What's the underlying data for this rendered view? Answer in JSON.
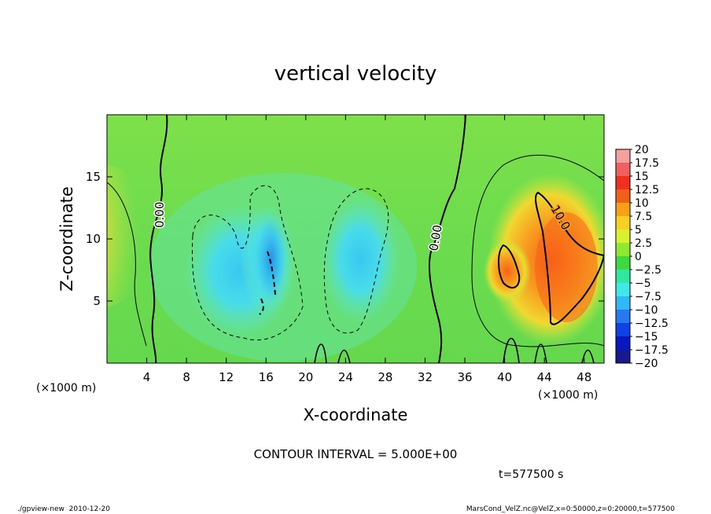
{
  "chart_data": {
    "type": "heatmap",
    "title": "vertical velocity",
    "xlabel": "X-coordinate",
    "ylabel": "Z-coordinate",
    "x_unit": "(×1000 m)",
    "z_unit": "(×1000 m)",
    "xlim": [
      0,
      50
    ],
    "zlim": [
      0,
      20
    ],
    "x_ticks": [
      4,
      8,
      12,
      16,
      20,
      24,
      28,
      32,
      36,
      40,
      44,
      48
    ],
    "z_ticks": [
      5,
      10,
      15
    ],
    "contour_labels": [
      "0.00",
      "0.00",
      "10.0"
    ],
    "contour_interval": "CONTOUR INTERVAL = 5.000E+00",
    "time_label": "t=577500 s",
    "footer_left": "./gpview-new  2010-12-20",
    "footer_right": "MarsCond_VelZ.nc@VelZ,x=0:50000,z=0:20000,t=577500",
    "colorbar": {
      "levels": [
        "20",
        "17.5",
        "15",
        "12.5",
        "10",
        "7.5",
        "5",
        "2.5",
        "0",
        "-2.5",
        "-5",
        "-7.5",
        "-10",
        "-12.5",
        "-15",
        "-17.5",
        "-20"
      ],
      "colors": [
        "#f4a0a0",
        "#f06060",
        "#f03020",
        "#f06018",
        "#f8a018",
        "#f8d020",
        "#d8f030",
        "#90e830",
        "#40d840",
        "#30e8a0",
        "#40e8e8",
        "#30b8f8",
        "#2878f0",
        "#1040e8",
        "#0818c0",
        "#181890",
        "#6018b0"
      ]
    }
  }
}
